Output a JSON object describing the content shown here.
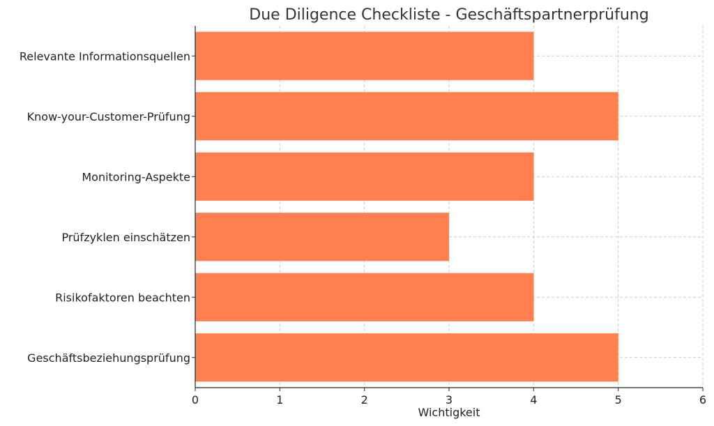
{
  "chart_data": {
    "type": "bar",
    "orientation": "horizontal",
    "title": "Due Diligence Checkliste - Geschäftspartnerprüfung",
    "xlabel": "Wichtigkeit",
    "ylabel": "",
    "xlim": [
      0,
      6
    ],
    "xticks": [
      0,
      1,
      2,
      3,
      4,
      5,
      6
    ],
    "grid": true,
    "bar_color": "#ff7f50",
    "categories": [
      "Relevante Informationsquellen",
      "Know-your-Customer-Prüfung",
      "Monitoring-Aspekte",
      "Prüfzyklen einschätzen",
      "Risikofaktoren beachten",
      "Geschäftsbeziehungsprüfung"
    ],
    "values": [
      4,
      5,
      4,
      3,
      4,
      5
    ]
  }
}
